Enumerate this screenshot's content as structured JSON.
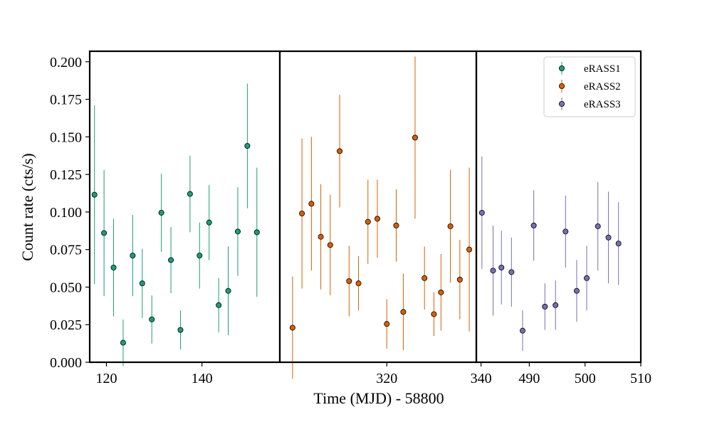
{
  "chart_data": {
    "type": "scatter",
    "xlabel": "Time (MJD) - 58800",
    "ylabel": "Count rate (cts/s)",
    "ylim": [
      0.0,
      0.207
    ],
    "yticks": [
      "0.000",
      "0.025",
      "0.050",
      "0.075",
      "0.100",
      "0.125",
      "0.150",
      "0.175",
      "0.200"
    ],
    "grid": false,
    "legend_position": "top-right",
    "legend_panel": 2,
    "panels": [
      {
        "xlim": [
          116.5,
          156.3
        ],
        "xticks": [
          {
            "value": 120,
            "label": "120"
          },
          {
            "value": 140,
            "label": "140"
          }
        ],
        "series": [
          {
            "name": "eRASS1",
            "color": "#1b9e77",
            "points": [
              {
                "x": 117.5,
                "y": 0.1115,
                "err": 0.0595
              },
              {
                "x": 119.5,
                "y": 0.086,
                "err": 0.042
              },
              {
                "x": 121.5,
                "y": 0.063,
                "err": 0.0325
              },
              {
                "x": 123.5,
                "y": 0.013,
                "err": 0.0155
              },
              {
                "x": 125.5,
                "y": 0.071,
                "err": 0.027
              },
              {
                "x": 127.5,
                "y": 0.0525,
                "err": 0.023
              },
              {
                "x": 129.5,
                "y": 0.0285,
                "err": 0.016
              },
              {
                "x": 131.5,
                "y": 0.0995,
                "err": 0.026
              },
              {
                "x": 133.5,
                "y": 0.068,
                "err": 0.022
              },
              {
                "x": 135.5,
                "y": 0.0215,
                "err": 0.013
              },
              {
                "x": 137.5,
                "y": 0.112,
                "err": 0.0255
              },
              {
                "x": 139.5,
                "y": 0.071,
                "err": 0.022
              },
              {
                "x": 141.5,
                "y": 0.093,
                "err": 0.025
              },
              {
                "x": 143.5,
                "y": 0.038,
                "err": 0.018
              },
              {
                "x": 145.5,
                "y": 0.0475,
                "err": 0.0295
              },
              {
                "x": 147.5,
                "y": 0.087,
                "err": 0.0295
              },
              {
                "x": 149.5,
                "y": 0.144,
                "err": 0.0415
              },
              {
                "x": 151.5,
                "y": 0.0865,
                "err": 0.043
              }
            ]
          }
        ]
      },
      {
        "xlim": [
          297.3,
          339.0
        ],
        "xticks": [
          {
            "value": 320,
            "label": "320"
          },
          {
            "value": 340,
            "label": "340"
          }
        ],
        "series": [
          {
            "name": "eRASS2",
            "color": "#d95f02",
            "points": [
              {
                "x": 300.0,
                "y": 0.023,
                "err": 0.034
              },
              {
                "x": 302.0,
                "y": 0.099,
                "err": 0.05
              },
              {
                "x": 304.0,
                "y": 0.1055,
                "err": 0.0445
              },
              {
                "x": 306.0,
                "y": 0.0835,
                "err": 0.035
              },
              {
                "x": 308.0,
                "y": 0.078,
                "err": 0.0335
              },
              {
                "x": 310.0,
                "y": 0.1405,
                "err": 0.0375
              },
              {
                "x": 312.0,
                "y": 0.054,
                "err": 0.0235
              },
              {
                "x": 314.0,
                "y": 0.0525,
                "err": 0.018
              },
              {
                "x": 316.0,
                "y": 0.0935,
                "err": 0.028
              },
              {
                "x": 318.0,
                "y": 0.0955,
                "err": 0.026
              },
              {
                "x": 320.0,
                "y": 0.0255,
                "err": 0.0165
              },
              {
                "x": 322.0,
                "y": 0.091,
                "err": 0.024
              },
              {
                "x": 323.5,
                "y": 0.0335,
                "err": 0.0255
              },
              {
                "x": 326.0,
                "y": 0.1495,
                "err": 0.054
              },
              {
                "x": 328.0,
                "y": 0.056,
                "err": 0.021
              },
              {
                "x": 330.0,
                "y": 0.032,
                "err": 0.0145
              },
              {
                "x": 331.5,
                "y": 0.0465,
                "err": 0.0255
              },
              {
                "x": 333.5,
                "y": 0.0905,
                "err": 0.0375
              },
              {
                "x": 335.5,
                "y": 0.055,
                "err": 0.0265
              },
              {
                "x": 337.5,
                "y": 0.075,
                "err": 0.0545
              }
            ]
          }
        ]
      },
      {
        "xlim": [
          480.5,
          510.0
        ],
        "xticks": [
          {
            "value": 490,
            "label": "490"
          },
          {
            "value": 500,
            "label": "500"
          },
          {
            "value": 510,
            "label": "510"
          }
        ],
        "series": [
          {
            "name": "eRASS3",
            "color": "#7570b3",
            "points": [
              {
                "x": 481.5,
                "y": 0.0995,
                "err": 0.0375
              },
              {
                "x": 483.5,
                "y": 0.061,
                "err": 0.03
              },
              {
                "x": 485.0,
                "y": 0.063,
                "err": 0.0245
              },
              {
                "x": 486.8,
                "y": 0.06,
                "err": 0.023
              },
              {
                "x": 488.8,
                "y": 0.021,
                "err": 0.0135
              },
              {
                "x": 490.8,
                "y": 0.091,
                "err": 0.0235
              },
              {
                "x": 492.8,
                "y": 0.037,
                "err": 0.0155
              },
              {
                "x": 494.7,
                "y": 0.038,
                "err": 0.0165
              },
              {
                "x": 496.5,
                "y": 0.087,
                "err": 0.024
              },
              {
                "x": 498.5,
                "y": 0.0475,
                "err": 0.0205
              },
              {
                "x": 500.3,
                "y": 0.056,
                "err": 0.0215
              },
              {
                "x": 502.3,
                "y": 0.0905,
                "err": 0.0295
              },
              {
                "x": 504.2,
                "y": 0.083,
                "err": 0.0305
              },
              {
                "x": 506.0,
                "y": 0.079,
                "err": 0.0275
              }
            ]
          }
        ]
      }
    ]
  }
}
